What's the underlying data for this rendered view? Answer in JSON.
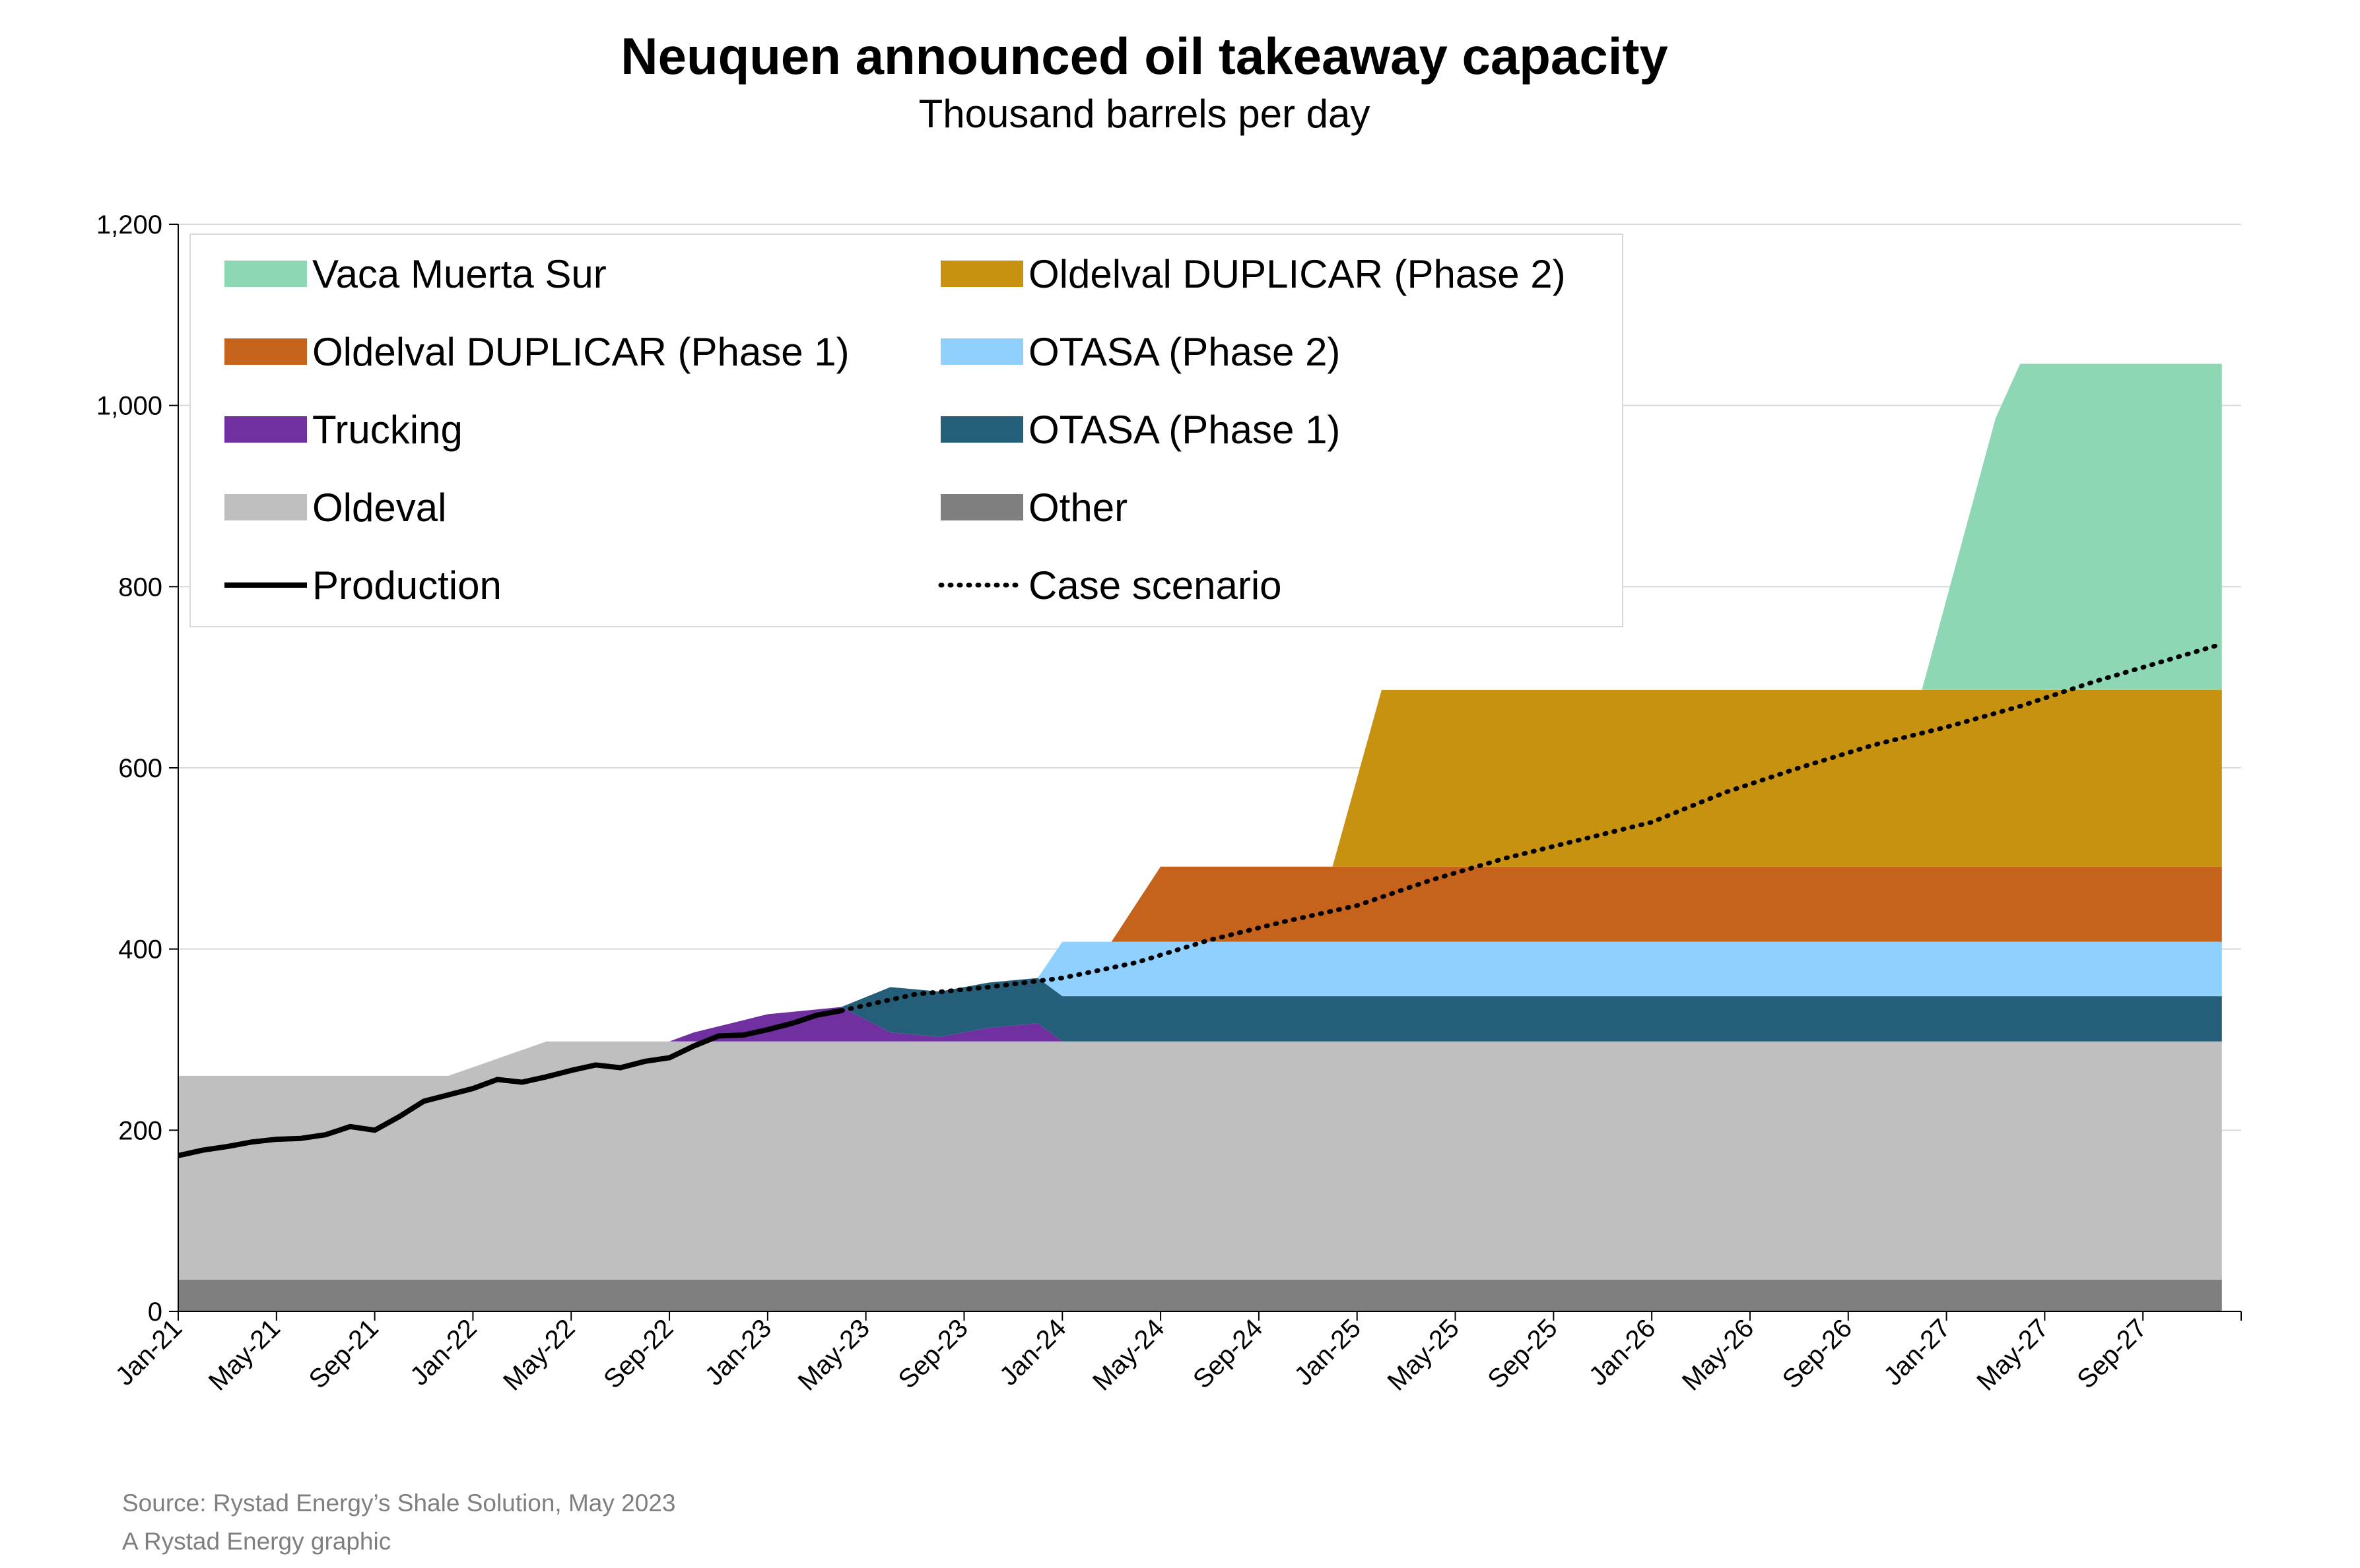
{
  "title": "Neuquen announced oil takeaway capacity",
  "subtitle": "Thousand barrels per day",
  "footer": {
    "source": "Source: Rystad Energy’s Shale Solution, May 2023",
    "credit": "A Rystad Energy graphic"
  },
  "chart_data": {
    "type": "area",
    "stacked": true,
    "title": "Neuquen announced oil takeaway capacity",
    "subtitle": "Thousand barrels per day",
    "ylim": [
      0,
      1200
    ],
    "yticks": [
      0,
      200,
      400,
      600,
      800,
      1000,
      1200
    ],
    "ytick_labels": [
      "0",
      "200",
      "400",
      "600",
      "800",
      "1,000",
      "1,200"
    ],
    "xlim": [
      "2021-01",
      "2027-12"
    ],
    "xtick_labels": [
      "Jan-21",
      "May-21",
      "Sep-21",
      "Jan-22",
      "May-22",
      "Sep-22",
      "Jan-23",
      "May-23",
      "Sep-23",
      "Jan-24",
      "May-24",
      "Sep-24",
      "Jan-25",
      "May-25",
      "Sep-25",
      "Jan-26",
      "May-26",
      "Sep-26",
      "Jan-27",
      "May-27",
      "Sep-27"
    ],
    "grid": "horizontal",
    "legend_position": "top-left",
    "areas": [
      {
        "name": "Other",
        "color": "#7f7f7f",
        "points": [
          [
            "2021-01",
            35
          ],
          [
            "2027-12",
            35
          ]
        ]
      },
      {
        "name": "Oldeval",
        "color": "#bfbfbf",
        "points": [
          [
            "2021-01",
            225
          ],
          [
            "2021-12",
            225
          ],
          [
            "2022-04",
            263
          ],
          [
            "2027-12",
            263
          ]
        ]
      },
      {
        "name": "Trucking",
        "color": "#7030a0",
        "points": [
          [
            "2021-01",
            0
          ],
          [
            "2022-09",
            0
          ],
          [
            "2022-10",
            10
          ],
          [
            "2023-01",
            30
          ],
          [
            "2023-04",
            38
          ],
          [
            "2023-06",
            10
          ],
          [
            "2023-08",
            5
          ],
          [
            "2023-10",
            15
          ],
          [
            "2023-12",
            20
          ],
          [
            "2024-01",
            0
          ],
          [
            "2027-12",
            0
          ]
        ]
      },
      {
        "name": "OTASA (Phase 1)",
        "color": "#255e79",
        "points": [
          [
            "2021-01",
            0
          ],
          [
            "2023-04",
            0
          ],
          [
            "2023-06",
            50
          ],
          [
            "2027-12",
            50
          ]
        ]
      },
      {
        "name": "OTASA (Phase 2)",
        "color": "#8fd0ff",
        "points": [
          [
            "2021-01",
            0
          ],
          [
            "2023-12",
            0
          ],
          [
            "2024-01",
            60
          ],
          [
            "2027-12",
            60
          ]
        ]
      },
      {
        "name": "Oldelval DUPLICAR (Phase 1)",
        "color": "#c5621c",
        "points": [
          [
            "2021-01",
            0
          ],
          [
            "2024-03",
            0
          ],
          [
            "2024-05",
            83
          ],
          [
            "2027-12",
            83
          ]
        ]
      },
      {
        "name": "Oldelval DUPLICAR (Phase 2)",
        "color": "#c7920f",
        "points": [
          [
            "2021-01",
            0
          ],
          [
            "2024-12",
            0
          ],
          [
            "2025-02",
            195
          ],
          [
            "2027-12",
            195
          ]
        ]
      },
      {
        "name": "Vaca Muerta Sur",
        "color": "#8ed7b5",
        "points": [
          [
            "2021-01",
            0
          ],
          [
            "2026-12",
            0
          ],
          [
            "2027-03",
            300
          ],
          [
            "2027-04",
            360
          ],
          [
            "2027-12",
            360
          ]
        ]
      }
    ],
    "lines": [
      {
        "name": "Production",
        "style": "solid",
        "color": "#000000",
        "points": [
          [
            "2021-01",
            172
          ],
          [
            "2021-02",
            178
          ],
          [
            "2021-03",
            182
          ],
          [
            "2021-04",
            187
          ],
          [
            "2021-05",
            190
          ],
          [
            "2021-06",
            191
          ],
          [
            "2021-07",
            195
          ],
          [
            "2021-08",
            204
          ],
          [
            "2021-09",
            200
          ],
          [
            "2021-10",
            215
          ],
          [
            "2021-11",
            232
          ],
          [
            "2021-12",
            239
          ],
          [
            "2022-01",
            246
          ],
          [
            "2022-02",
            256
          ],
          [
            "2022-03",
            253
          ],
          [
            "2022-04",
            259
          ],
          [
            "2022-05",
            266
          ],
          [
            "2022-06",
            272
          ],
          [
            "2022-07",
            269
          ],
          [
            "2022-08",
            276
          ],
          [
            "2022-09",
            280
          ],
          [
            "2022-10",
            293
          ],
          [
            "2022-11",
            304
          ],
          [
            "2022-12",
            305
          ],
          [
            "2023-01",
            311
          ],
          [
            "2023-02",
            318
          ],
          [
            "2023-03",
            327
          ],
          [
            "2023-04",
            332
          ]
        ]
      },
      {
        "name": "Case scenario",
        "style": "dotted",
        "color": "#000000",
        "points": [
          [
            "2023-04",
            332
          ],
          [
            "2023-07",
            350
          ],
          [
            "2023-10",
            358
          ],
          [
            "2024-01",
            368
          ],
          [
            "2024-04",
            385
          ],
          [
            "2024-07",
            410
          ],
          [
            "2024-10",
            430
          ],
          [
            "2025-01",
            448
          ],
          [
            "2025-04",
            476
          ],
          [
            "2025-07",
            500
          ],
          [
            "2025-10",
            520
          ],
          [
            "2026-01",
            540
          ],
          [
            "2026-04",
            573
          ],
          [
            "2026-07",
            600
          ],
          [
            "2026-10",
            625
          ],
          [
            "2027-01",
            645
          ],
          [
            "2027-04",
            668
          ],
          [
            "2027-07",
            695
          ],
          [
            "2027-12",
            735
          ]
        ]
      }
    ],
    "legend": [
      {
        "label": "Vaca Muerta Sur",
        "color": "#8ed7b5",
        "type": "box"
      },
      {
        "label": "Oldelval DUPLICAR (Phase 2)",
        "color": "#c7920f",
        "type": "box"
      },
      {
        "label": "Oldelval DUPLICAR (Phase 1)",
        "color": "#c5621c",
        "type": "box"
      },
      {
        "label": "OTASA (Phase 2)",
        "color": "#8fd0ff",
        "type": "box"
      },
      {
        "label": "Trucking",
        "color": "#7030a0",
        "type": "box"
      },
      {
        "label": "OTASA (Phase 1)",
        "color": "#255e79",
        "type": "box"
      },
      {
        "label": "Oldeval",
        "color": "#bfbfbf",
        "type": "box"
      },
      {
        "label": "Other",
        "color": "#7f7f7f",
        "type": "box"
      },
      {
        "label": "Production",
        "color": "#000000",
        "type": "solid"
      },
      {
        "label": "Case scenario",
        "color": "#000000",
        "type": "dotted"
      }
    ]
  }
}
